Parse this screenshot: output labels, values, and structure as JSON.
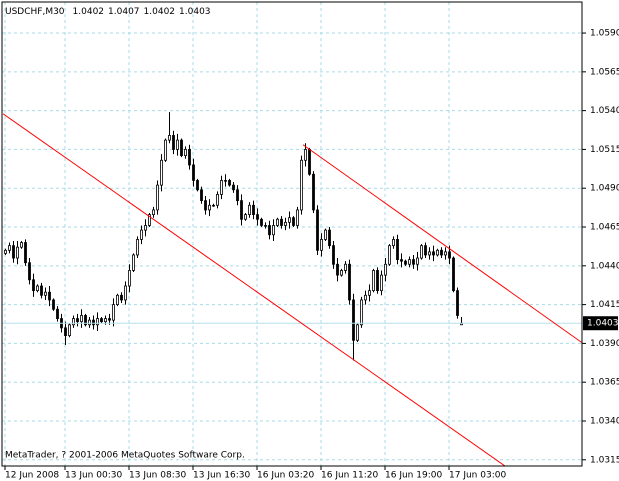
{
  "chart_data": {
    "type": "candlestick",
    "title": "USDCHF,M30",
    "footer": "MetaTrader, ? 2001-2006 MetaQuotes Software Corp.",
    "up_color": "#ffffff",
    "down_color": "#000000",
    "outline_color": "#000000",
    "grid": true,
    "grid_color": "#a6dce8",
    "categories": [
      "12 Jun 2008",
      null,
      null,
      null,
      null,
      null,
      null,
      null,
      null,
      null,
      null,
      null,
      null,
      null,
      null,
      "13 Jun 00:30",
      null,
      null,
      null,
      null,
      null,
      null,
      null,
      null,
      null,
      null,
      null,
      null,
      null,
      null,
      null,
      "13 Jun 08:30",
      null,
      null,
      null,
      null,
      null,
      null,
      null,
      null,
      null,
      null,
      null,
      null,
      null,
      null,
      null,
      "13 Jun 16:30",
      null,
      null,
      null,
      null,
      null,
      null,
      null,
      null,
      null,
      null,
      null,
      null,
      null,
      null,
      null,
      "16 Jun 03:20",
      null,
      null,
      null,
      null,
      null,
      null,
      null,
      null,
      null,
      null,
      null,
      null,
      null,
      null,
      null,
      "16 Jun 11:20",
      null,
      null,
      null,
      null,
      null,
      null,
      null,
      null,
      null,
      null,
      null,
      null,
      null,
      null,
      null,
      "16 Jun 19:00",
      null,
      null,
      null,
      null,
      null,
      null,
      null,
      null,
      null,
      null,
      null,
      null,
      null,
      null,
      null,
      "17 Jun 03:00",
      null,
      null,
      null
    ],
    "open": [
      1.0448,
      1.045,
      1.0453,
      1.0445,
      1.0452,
      1.0455,
      1.0442,
      1.0431,
      1.0424,
      1.0427,
      1.0421,
      1.0423,
      1.0418,
      1.0412,
      1.0406,
      1.04,
      1.0395,
      1.0402,
      1.0406,
      1.0404,
      1.0408,
      1.0402,
      1.0405,
      1.0402,
      1.0406,
      1.0404,
      1.0406,
      1.0405,
      1.0415,
      1.0421,
      1.0418,
      1.0427,
      1.0437,
      1.0447,
      1.0457,
      1.0463,
      1.0466,
      1.0473,
      1.0476,
      1.0492,
      1.0508,
      1.0521,
      1.0524,
      1.0515,
      1.0521,
      1.0511,
      1.0515,
      1.0505,
      1.0495,
      1.0489,
      1.0482,
      1.0476,
      1.0479,
      1.0479,
      1.0486,
      1.0495,
      1.0495,
      1.0492,
      1.0489,
      1.0482,
      1.047,
      1.0473,
      1.0479,
      1.0473,
      1.047,
      1.0466,
      1.0466,
      1.046,
      1.0466,
      1.047,
      1.0466,
      1.0468,
      1.0471,
      1.0466,
      1.0476,
      1.0508,
      1.0515,
      1.0499,
      1.0476,
      1.045,
      1.0457,
      1.0463,
      1.0453,
      1.0441,
      1.0434,
      1.0437,
      1.0441,
      1.0418,
      1.0392,
      1.0402,
      1.0418,
      1.0421,
      1.0424,
      1.0437,
      1.0424,
      1.0434,
      1.0441,
      1.0453,
      1.0457,
      1.0444,
      1.0443,
      1.0441,
      1.0444,
      1.0441,
      1.0445,
      1.0453,
      1.0447,
      1.0449,
      1.0447,
      1.045,
      1.0447,
      1.0449,
      1.0445,
      1.0424,
      1.0402
    ],
    "high": [
      1.0451,
      1.0455,
      1.0456,
      1.0456,
      1.0456,
      1.0457,
      1.0445,
      1.0435,
      1.0428,
      1.0429,
      1.0426,
      1.0427,
      1.0419,
      1.0414,
      1.0409,
      1.0404,
      1.0403,
      1.0408,
      1.0409,
      1.0412,
      1.0409,
      1.0407,
      1.0408,
      1.041,
      1.0407,
      1.0408,
      1.0409,
      1.0419,
      1.0422,
      1.0423,
      1.043,
      1.0441,
      1.0448,
      1.0459,
      1.0466,
      1.047,
      1.0474,
      1.0478,
      1.0495,
      1.0512,
      1.0522,
      1.0539,
      1.0527,
      1.0525,
      1.0522,
      1.0517,
      1.0518,
      1.0509,
      1.0496,
      1.0491,
      1.0485,
      1.0483,
      1.048,
      1.0488,
      1.0498,
      1.0499,
      1.0496,
      1.0494,
      1.0492,
      1.0486,
      1.0474,
      1.0481,
      1.0482,
      1.0477,
      1.0471,
      1.0468,
      1.0469,
      1.047,
      1.0471,
      1.0472,
      1.0471,
      1.0475,
      1.0472,
      1.0478,
      1.0511,
      1.0519,
      1.0516,
      1.0501,
      1.0479,
      1.0461,
      1.0464,
      1.0465,
      1.0456,
      1.0445,
      1.0438,
      1.0443,
      1.0444,
      1.0422,
      1.0403,
      1.042,
      1.0424,
      1.0428,
      1.0438,
      1.0439,
      1.0437,
      1.0445,
      1.0454,
      1.0459,
      1.046,
      1.0448,
      1.0444,
      1.0446,
      1.0447,
      1.0449,
      1.0454,
      1.0455,
      1.0452,
      1.0453,
      1.0451,
      1.0452,
      1.0452,
      1.0453,
      1.0446,
      1.0426,
      1.0407
    ],
    "low": [
      1.0447,
      1.0448,
      1.0442,
      1.0441,
      1.0451,
      1.044,
      1.0428,
      1.042,
      1.0423,
      1.0419,
      1.0418,
      1.0414,
      1.0411,
      1.0404,
      1.0397,
      1.0389,
      1.0394,
      1.04,
      1.0401,
      1.04,
      1.0401,
      1.04,
      1.0399,
      1.0398,
      1.0403,
      1.0402,
      1.0402,
      1.0401,
      1.0414,
      1.0416,
      1.0415,
      1.0423,
      1.0436,
      1.0445,
      1.0454,
      1.0459,
      1.0465,
      1.0471,
      1.0473,
      1.0488,
      1.0507,
      1.0519,
      1.0512,
      1.0511,
      1.051,
      1.0509,
      1.0502,
      1.0491,
      1.0488,
      1.048,
      1.0473,
      1.0472,
      1.0478,
      1.0477,
      1.0483,
      1.0491,
      1.0491,
      1.0487,
      1.0479,
      1.0466,
      1.0469,
      1.0471,
      1.047,
      1.0466,
      1.0465,
      1.0464,
      1.0457,
      1.0456,
      1.0465,
      1.0464,
      1.0463,
      1.0464,
      1.0465,
      1.0464,
      1.0473,
      1.0504,
      1.0498,
      1.0474,
      1.0447,
      1.0446,
      1.0456,
      1.0451,
      1.0438,
      1.043,
      1.0433,
      1.0435,
      1.0415,
      1.0379,
      1.0391,
      1.04,
      1.0415,
      1.0417,
      1.0423,
      1.0422,
      1.0421,
      1.043,
      1.044,
      1.0451,
      1.0441,
      1.0439,
      1.044,
      1.0439,
      1.0438,
      1.0437,
      1.0444,
      1.0445,
      1.0444,
      1.0443,
      1.0446,
      1.0445,
      1.0444,
      1.0441,
      1.0423,
      1.0406,
      1.0402
    ],
    "close": [
      1.045,
      1.0453,
      1.0445,
      1.0452,
      1.0455,
      1.0442,
      1.0431,
      1.0424,
      1.0427,
      1.0421,
      1.0423,
      1.0418,
      1.0412,
      1.0406,
      1.04,
      1.0395,
      1.0402,
      1.0406,
      1.0404,
      1.0408,
      1.0402,
      1.0405,
      1.0402,
      1.0406,
      1.0404,
      1.0406,
      1.0405,
      1.0415,
      1.0421,
      1.0418,
      1.0427,
      1.0437,
      1.0447,
      1.0457,
      1.0463,
      1.0466,
      1.0473,
      1.0476,
      1.0492,
      1.0508,
      1.0521,
      1.0524,
      1.0515,
      1.0521,
      1.0511,
      1.0515,
      1.0505,
      1.0495,
      1.0489,
      1.0482,
      1.0476,
      1.0479,
      1.0479,
      1.0486,
      1.0495,
      1.0495,
      1.0492,
      1.0489,
      1.0482,
      1.047,
      1.0473,
      1.0479,
      1.0473,
      1.047,
      1.0466,
      1.0466,
      1.046,
      1.0466,
      1.047,
      1.0466,
      1.0468,
      1.0471,
      1.0466,
      1.0476,
      1.0508,
      1.0515,
      1.0499,
      1.0476,
      1.045,
      1.0457,
      1.0463,
      1.0453,
      1.0441,
      1.0434,
      1.0437,
      1.0441,
      1.0418,
      1.0392,
      1.0402,
      1.0418,
      1.0421,
      1.0424,
      1.0437,
      1.0424,
      1.0434,
      1.0441,
      1.0453,
      1.0457,
      1.0444,
      1.0443,
      1.0441,
      1.0444,
      1.0441,
      1.0445,
      1.0453,
      1.0447,
      1.0449,
      1.0447,
      1.045,
      1.0447,
      1.0449,
      1.0445,
      1.0424,
      1.0408,
      1.0403
    ],
    "ylim": [
      1.0311,
      1.061
    ],
    "yticks": [
      1.0315,
      {
        "value": 1.034,
        "label": "1.0340"
      },
      1.0365,
      {
        "value": 1.039,
        "label": "1.0390"
      },
      1.0415,
      {
        "value": 1.044,
        "label": "1.0440"
      },
      1.0465,
      {
        "value": 1.049,
        "label": "1.0490"
      },
      1.0515,
      {
        "value": 1.054,
        "label": "1.0540"
      },
      1.0565,
      {
        "value": 1.059,
        "label": "1.0590"
      }
    ],
    "trendlines": [
      {
        "color": "#ff0000",
        "x": [
          -0.5,
          125
        ],
        "y": [
          1.0538,
          1.0311
        ]
      },
      {
        "color": "#ff0000",
        "x": [
          74.5,
          144.5
        ],
        "y": [
          1.0518,
          1.039
        ]
      }
    ]
  }
}
